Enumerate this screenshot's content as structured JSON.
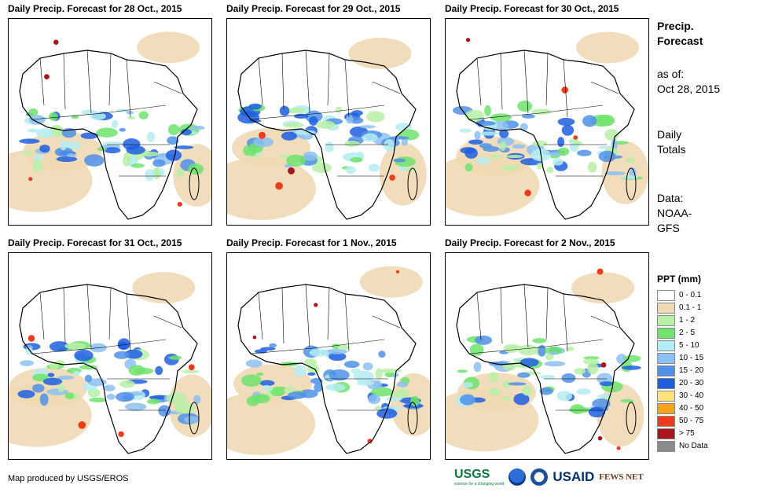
{
  "panels": [
    {
      "title": "Daily Precip. Forecast for 28 Oct., 2015"
    },
    {
      "title": "Daily Precip. Forecast for 29 Oct., 2015"
    },
    {
      "title": "Daily Precip. Forecast for 30 Oct., 2015"
    },
    {
      "title": "Daily Precip. Forecast for 31 Oct., 2015"
    },
    {
      "title": "Daily Precip. Forecast for 1 Nov., 2015"
    },
    {
      "title": "Daily Precip. Forecast for 2 Nov., 2015"
    }
  ],
  "side": {
    "heading_line1": "Precip.",
    "heading_line2": "Forecast",
    "asof_line1": "as of:",
    "asof_line2": "Oct 28, 2015",
    "totals_line1": "Daily",
    "totals_line2": "Totals",
    "data_line1": "Data:",
    "data_line2": "NOAA-",
    "data_line3": "GFS"
  },
  "legend": {
    "title": "PPT (mm)",
    "items": [
      {
        "label": "0 - 0.1",
        "color": "#ffffff"
      },
      {
        "label": "0.1 - 1",
        "color": "#efd9b4"
      },
      {
        "label": "1 - 2",
        "color": "#b7f0a6"
      },
      {
        "label": "2 - 5",
        "color": "#6fe36c"
      },
      {
        "label": "5 - 10",
        "color": "#b5ecf1"
      },
      {
        "label": "10 - 15",
        "color": "#8dc0f0"
      },
      {
        "label": "15 - 20",
        "color": "#4f90e8"
      },
      {
        "label": "20 - 30",
        "color": "#1f5fe0"
      },
      {
        "label": "30 - 40",
        "color": "#f9e27a"
      },
      {
        "label": "40 - 50",
        "color": "#f7a11a"
      },
      {
        "label": "50 - 75",
        "color": "#ef3b1a"
      },
      {
        "label": "> 75",
        "color": "#a9141a"
      },
      {
        "label": "No Data",
        "color": "#8c8c8c"
      }
    ]
  },
  "footer": {
    "credit": "Map produced by USGS/EROS"
  },
  "logos": {
    "usgs": "USGS",
    "usgs_tagline": "science for a changing world",
    "usaid": "USAID",
    "fewsnet": "FEWS NET"
  }
}
